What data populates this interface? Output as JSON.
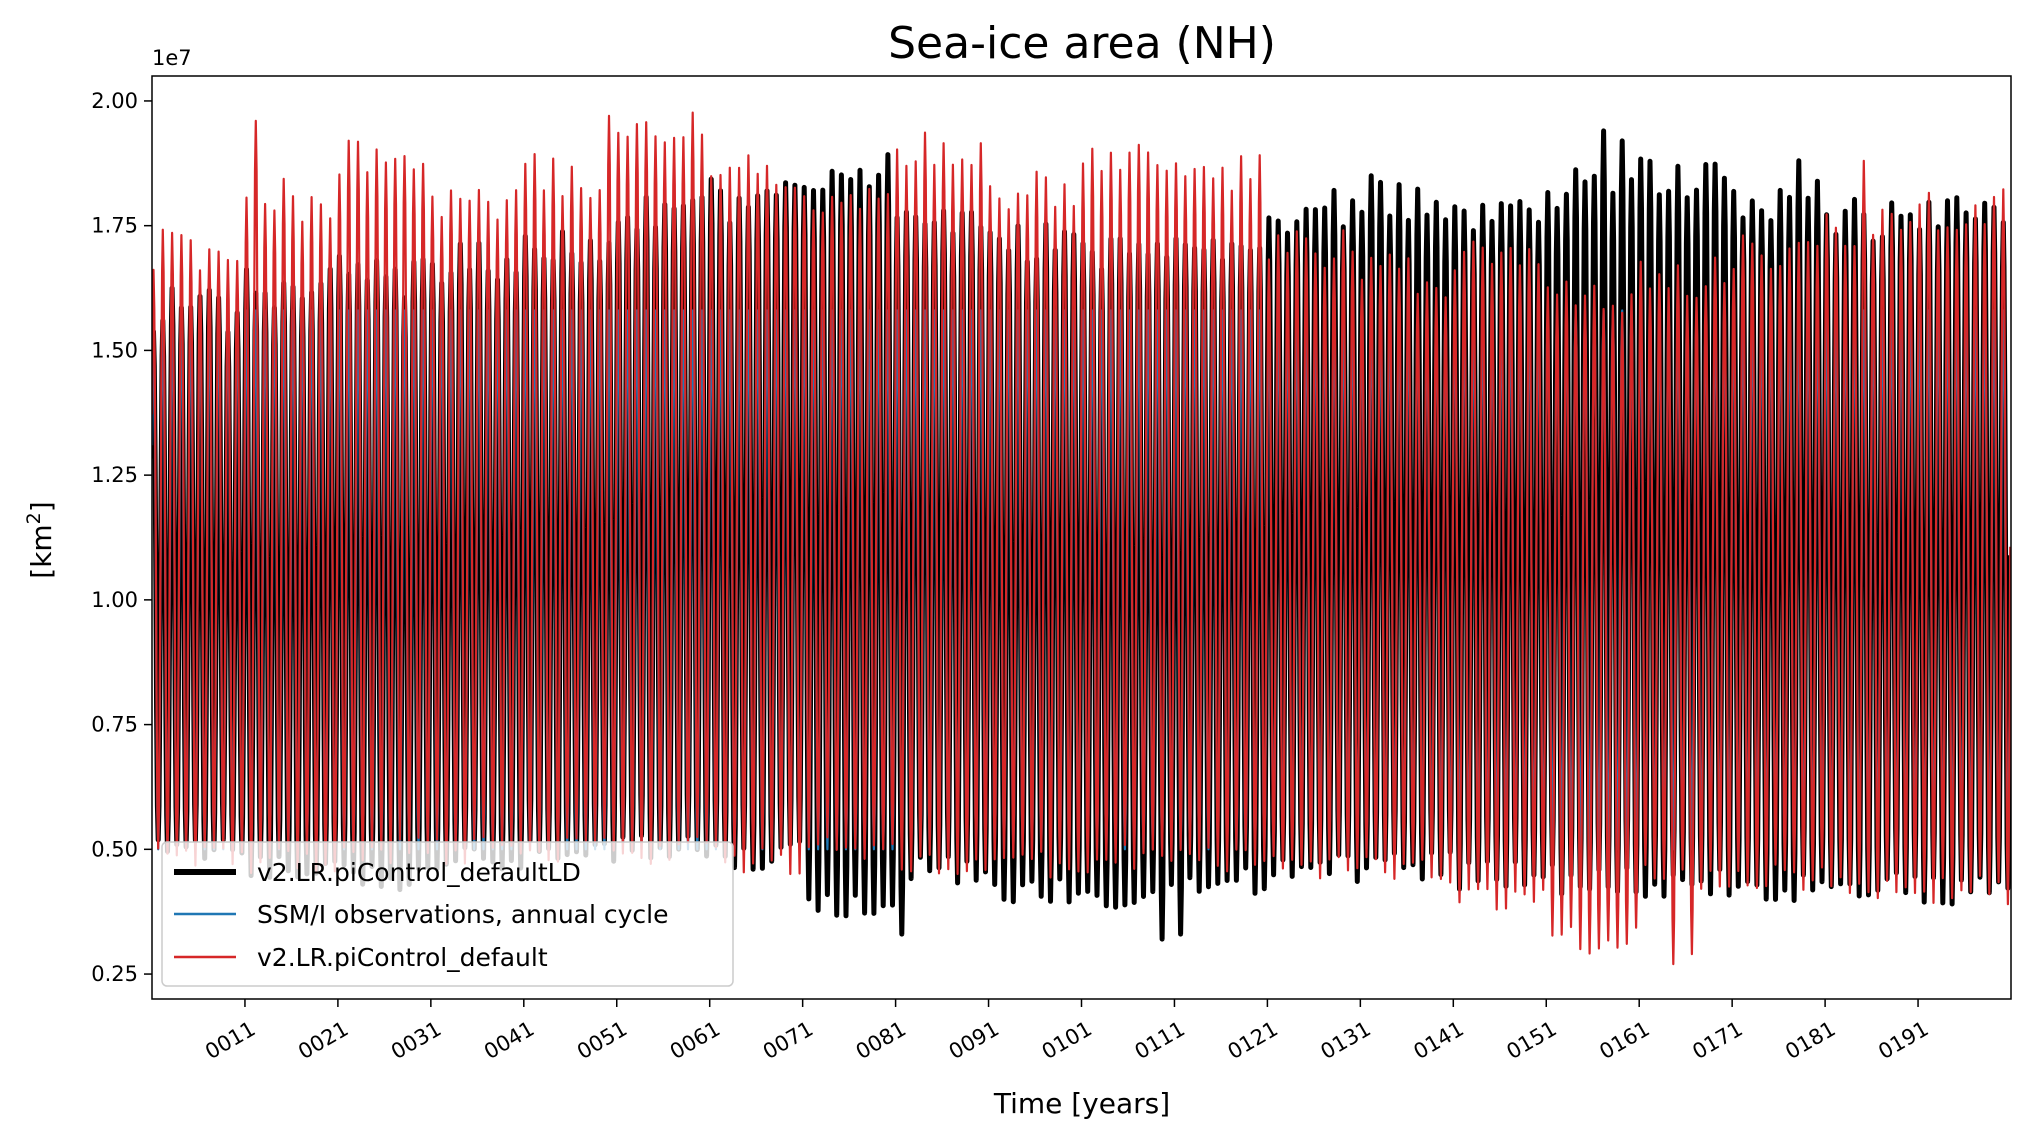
{
  "chart_data": {
    "type": "line",
    "title": "Sea-ice area (NH)",
    "xlabel": "Time [years]",
    "ylabel": "[km",
    "ylabel_sup": "2",
    "ylabel_close": "]",
    "offset_label": "1e7",
    "xlim": [
      1,
      201
    ],
    "ylim": [
      0.2,
      2.05
    ],
    "grid": false,
    "legend_position": "lower-left",
    "x_ticks": [
      11,
      21,
      31,
      41,
      51,
      61,
      71,
      81,
      91,
      101,
      111,
      121,
      131,
      141,
      151,
      161,
      171,
      181,
      191
    ],
    "x_tick_labels": [
      "0011",
      "0021",
      "0031",
      "0041",
      "0051",
      "0061",
      "0071",
      "0081",
      "0091",
      "0101",
      "0111",
      "0121",
      "0131",
      "0141",
      "0151",
      "0161",
      "0171",
      "0181",
      "0191"
    ],
    "y_ticks": [
      0.25,
      0.5,
      0.75,
      1.0,
      1.25,
      1.5,
      1.75,
      2.0
    ],
    "y_tick_labels": [
      "0.25",
      "0.50",
      "0.75",
      "1.00",
      "1.25",
      "1.50",
      "1.75",
      "2.00"
    ],
    "series": [
      {
        "name": "v2.LR.piControl_defaultLD",
        "color": "#000000",
        "line_width": "thick",
        "annual_max": [
          1.58,
          1.62,
          1.65,
          1.67,
          1.72,
          1.78,
          1.8,
          1.85,
          1.78,
          1.72,
          1.7,
          1.72,
          1.78,
          1.8,
          1.76,
          1.82,
          1.85,
          1.8,
          1.76,
          1.78
        ],
        "annual_min": [
          0.49,
          0.46,
          0.44,
          0.48,
          0.5,
          0.5,
          0.49,
          0.38,
          0.46,
          0.42,
          0.4,
          0.44,
          0.46,
          0.47,
          0.45,
          0.44,
          0.43,
          0.42,
          0.43,
          0.42
        ],
        "extremes": [
          {
            "x": 81,
            "min": 0.33
          },
          {
            "x": 109,
            "min": 0.32
          },
          {
            "x": 111,
            "min": 0.33
          },
          {
            "x": 132,
            "max": 1.85
          },
          {
            "x": 157,
            "max": 1.94
          },
          {
            "x": 159,
            "max": 1.92
          },
          {
            "x": 178,
            "max": 1.88
          }
        ]
      },
      {
        "name": "SSM/I observations, annual cycle",
        "color": "#1f77b4",
        "line_width": "thin",
        "annual_max": [
          1.58
        ],
        "annual_min": [
          0.5
        ],
        "note": "repeating annual cycle"
      },
      {
        "name": "v2.LR.piControl_default",
        "color": "#d62728",
        "line_width": "thin",
        "annual_max": [
          1.7,
          1.8,
          1.88,
          1.78,
          1.85,
          1.95,
          1.86,
          1.78,
          1.9,
          1.82,
          1.9,
          1.86,
          1.7,
          1.65,
          1.68,
          1.62,
          1.65,
          1.7,
          1.75,
          1.78
        ],
        "annual_min": [
          0.48,
          0.48,
          0.5,
          0.5,
          0.5,
          0.5,
          0.48,
          0.5,
          0.48,
          0.47,
          0.48,
          0.48,
          0.47,
          0.46,
          0.4,
          0.32,
          0.45,
          0.44,
          0.42,
          0.42
        ],
        "extremes": [
          {
            "x": 12,
            "max": 1.96
          },
          {
            "x": 50,
            "max": 1.97
          },
          {
            "x": 154,
            "min": 0.3
          },
          {
            "x": 164,
            "min": 0.27
          },
          {
            "x": 166,
            "min": 0.29
          },
          {
            "x": 185,
            "max": 1.88
          }
        ]
      }
    ]
  }
}
